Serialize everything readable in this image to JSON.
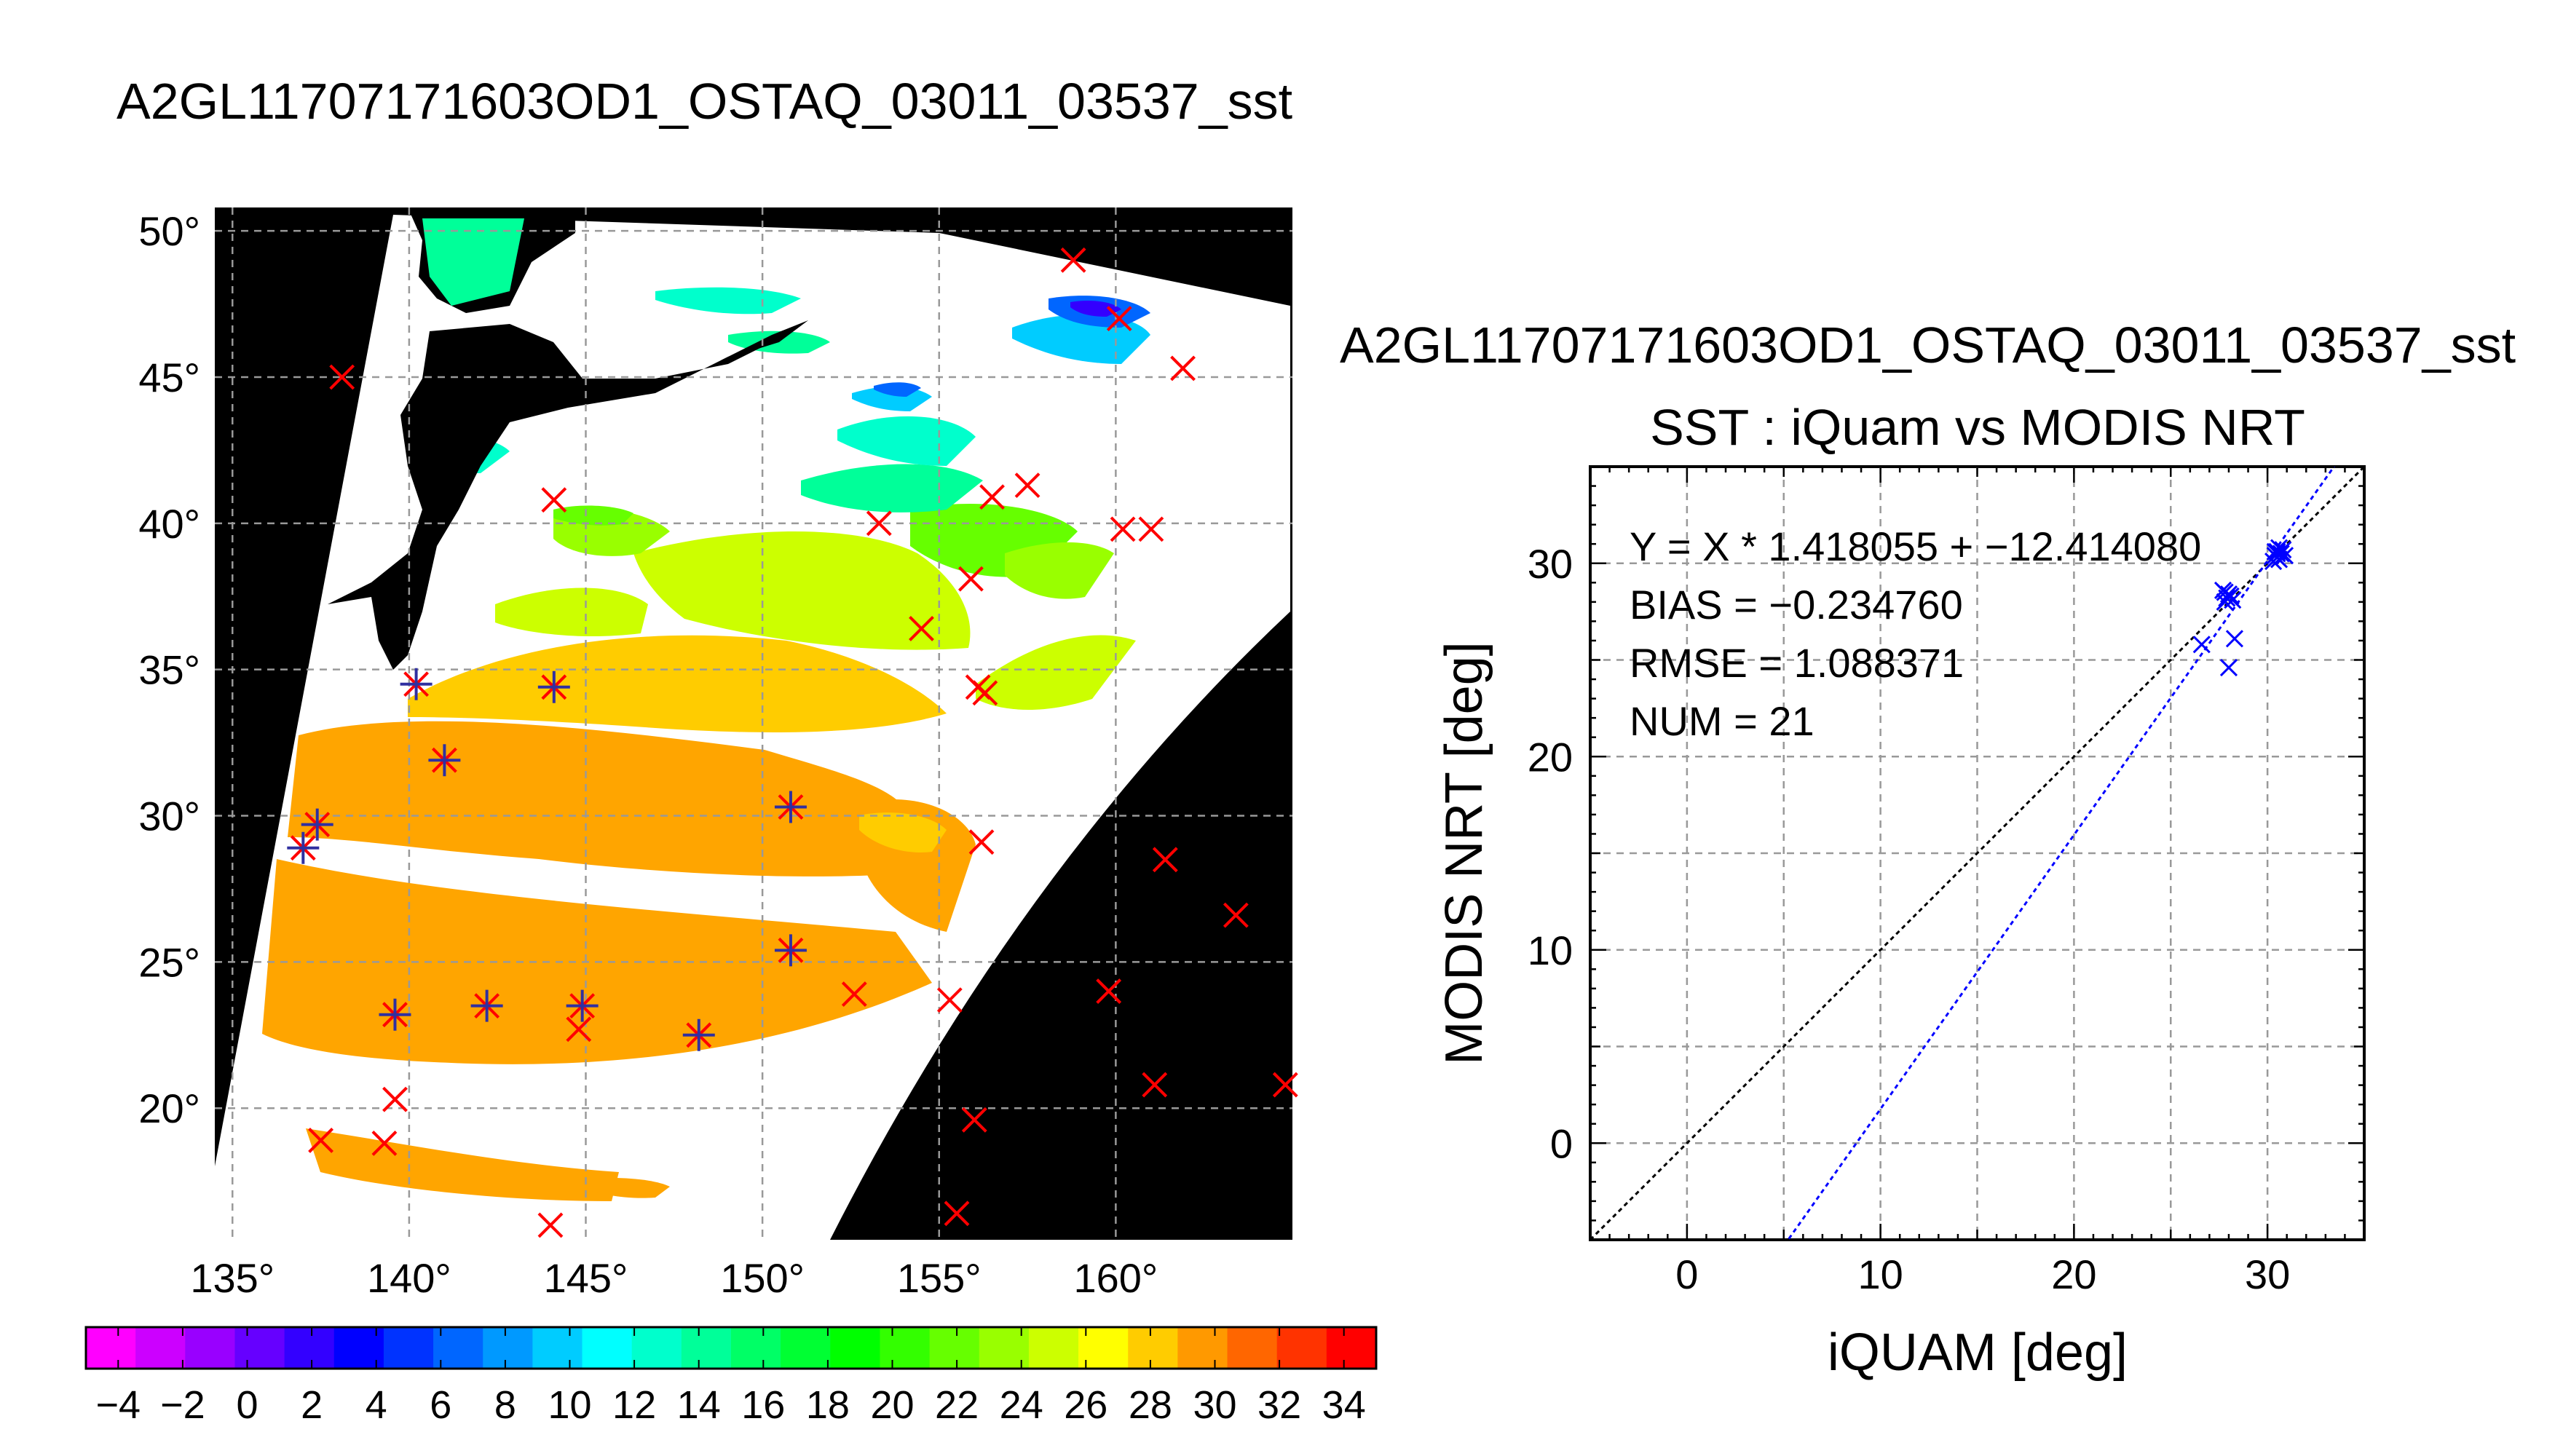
{
  "map_title": "A2GL11707171603OD1_OSTAQ_03011_03537_sst",
  "scatter_title": "A2GL11707171603OD1_OSTAQ_03011_03537_sst",
  "chart_data": [
    {
      "type": "map",
      "title": "A2GL11707171603OD1_OSTAQ_03011_03537_sst",
      "lon_range": [
        134.5,
        165
      ],
      "lat_range": [
        15.5,
        50.8
      ],
      "lon_ticks": [
        "135°",
        "140°",
        "145°",
        "150°",
        "155°",
        "160°"
      ],
      "lon_tick_values": [
        135,
        140,
        145,
        150,
        155,
        160
      ],
      "lat_ticks": [
        "50°",
        "45°",
        "40°",
        "35°",
        "30°",
        "25°",
        "20°"
      ],
      "lat_tick_values": [
        50,
        45,
        40,
        35,
        30,
        25,
        20
      ],
      "grid": true,
      "colorbar": {
        "min": -5,
        "max": 35,
        "tick_labels": [
          "−4",
          "−2",
          "0",
          "2",
          "4",
          "6",
          "8",
          "10",
          "12",
          "14",
          "16",
          "18",
          "20",
          "22",
          "24",
          "26",
          "28",
          "30",
          "32",
          "34"
        ],
        "tick_values": [
          -4,
          -2,
          0,
          2,
          4,
          6,
          8,
          10,
          12,
          14,
          16,
          18,
          20,
          22,
          24,
          26,
          28,
          30,
          32,
          34
        ],
        "colors": [
          "#ff00ff",
          "#cc00ff",
          "#9900ff",
          "#6600ff",
          "#3300ff",
          "#0000ff",
          "#0033ff",
          "#0066ff",
          "#0099ff",
          "#00ccff",
          "#00ffff",
          "#00ffcc",
          "#00ff99",
          "#00ff66",
          "#00ff33",
          "#00ff00",
          "#33ff00",
          "#66ff00",
          "#99ff00",
          "#ccff00",
          "#ffff00",
          "#ffcc00",
          "#ff9900",
          "#ff6600",
          "#ff3300",
          "#ff0000"
        ]
      },
      "buoys_unmatched": [
        {
          "lon": 138.1,
          "lat": 45.0
        },
        {
          "lon": 144.1,
          "lat": 40.8
        },
        {
          "lon": 153.3,
          "lat": 40.0
        },
        {
          "lon": 154.5,
          "lat": 36.4
        },
        {
          "lon": 155.9,
          "lat": 38.1
        },
        {
          "lon": 156.5,
          "lat": 40.9
        },
        {
          "lon": 157.5,
          "lat": 41.3
        },
        {
          "lon": 158.8,
          "lat": 49.0
        },
        {
          "lon": 160.1,
          "lat": 47.0
        },
        {
          "lon": 161.9,
          "lat": 45.3
        },
        {
          "lon": 160.2,
          "lat": 39.8
        },
        {
          "lon": 161.0,
          "lat": 39.8
        },
        {
          "lon": 156.1,
          "lat": 34.4
        },
        {
          "lon": 156.3,
          "lat": 34.2
        },
        {
          "lon": 156.2,
          "lat": 29.1
        },
        {
          "lon": 161.4,
          "lat": 28.5
        },
        {
          "lon": 163.4,
          "lat": 26.6
        },
        {
          "lon": 159.8,
          "lat": 24.0
        },
        {
          "lon": 155.3,
          "lat": 23.7
        },
        {
          "lon": 152.6,
          "lat": 23.9
        },
        {
          "lon": 161.1,
          "lat": 20.8
        },
        {
          "lon": 164.8,
          "lat": 20.8
        },
        {
          "lon": 156.0,
          "lat": 19.6
        },
        {
          "lon": 155.5,
          "lat": 16.4
        },
        {
          "lon": 144.0,
          "lat": 16.0
        },
        {
          "lon": 137.5,
          "lat": 18.9
        },
        {
          "lon": 139.3,
          "lat": 18.8
        },
        {
          "lon": 139.6,
          "lat": 20.3
        },
        {
          "lon": 144.8,
          "lat": 22.7
        }
      ],
      "buoys_matched": [
        {
          "lon": 140.2,
          "lat": 34.5
        },
        {
          "lon": 144.1,
          "lat": 34.4
        },
        {
          "lon": 141.0,
          "lat": 31.9
        },
        {
          "lon": 137.4,
          "lat": 29.7
        },
        {
          "lon": 137.0,
          "lat": 28.9
        },
        {
          "lon": 150.8,
          "lat": 30.3
        },
        {
          "lon": 150.8,
          "lat": 25.4
        },
        {
          "lon": 139.6,
          "lat": 23.2
        },
        {
          "lon": 142.2,
          "lat": 23.5
        },
        {
          "lon": 144.9,
          "lat": 23.5
        },
        {
          "lon": 148.2,
          "lat": 22.5
        }
      ]
    },
    {
      "type": "scatter",
      "title": "SST : iQuam vs MODIS NRT",
      "xlabel": "iQUAM [deg]",
      "ylabel": "MODIS NRT [deg]",
      "xlim": [
        -5,
        35
      ],
      "ylim": [
        -5,
        35
      ],
      "x_ticks": [
        0,
        10,
        20,
        30
      ],
      "y_ticks": [
        0,
        10,
        20,
        30
      ],
      "grid": true,
      "stats": [
        "Y = X * 1.418055 + −12.414080",
        "BIAS = −0.234760",
        "RMSE = 1.088371",
        "NUM = 21"
      ],
      "fit": {
        "slope": 1.418055,
        "intercept": -12.41408
      },
      "points": [
        {
          "x": 27.8,
          "y": 28.5
        },
        {
          "x": 28.0,
          "y": 28.4
        },
        {
          "x": 27.9,
          "y": 28.2
        },
        {
          "x": 28.1,
          "y": 28.3
        },
        {
          "x": 27.7,
          "y": 28.6
        },
        {
          "x": 28.2,
          "y": 28.1
        },
        {
          "x": 27.8,
          "y": 28.0
        },
        {
          "x": 28.3,
          "y": 26.1
        },
        {
          "x": 26.6,
          "y": 25.8
        },
        {
          "x": 28.0,
          "y": 24.6
        },
        {
          "x": 30.5,
          "y": 30.6
        },
        {
          "x": 30.6,
          "y": 30.2
        },
        {
          "x": 30.4,
          "y": 30.4
        },
        {
          "x": 30.7,
          "y": 30.5
        },
        {
          "x": 30.5,
          "y": 30.3
        },
        {
          "x": 30.8,
          "y": 30.7
        },
        {
          "x": 30.3,
          "y": 30.1
        },
        {
          "x": 30.6,
          "y": 30.8
        },
        {
          "x": 30.5,
          "y": 30.5
        },
        {
          "x": 30.9,
          "y": 30.4
        },
        {
          "x": 30.4,
          "y": 30.6
        }
      ],
      "colors": {
        "points": "#0000ff",
        "fit": "#0000ff",
        "identity": "#000000"
      }
    }
  ]
}
